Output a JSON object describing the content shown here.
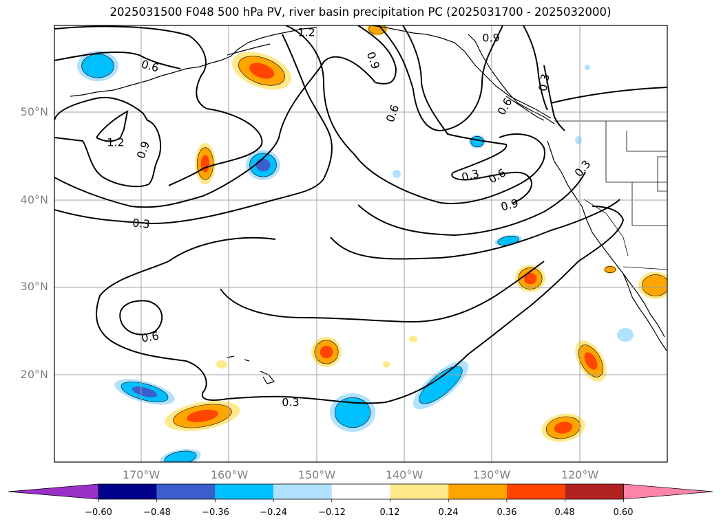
{
  "title": "2025031500 F048 500 hPa PV, river basin precipitation PC (2025031700 - 2025032000)",
  "lat_labels": [
    "50°N",
    "40°N",
    "30°N",
    "20°N"
  ],
  "lon_labels": [
    "170°W",
    "160°W",
    "150°W",
    "140°W",
    "130°W",
    "120°W"
  ],
  "contour_labels": [
    "0.3",
    "0.6",
    "0.9",
    "1.2"
  ],
  "colorbar": {
    "tick_labels": [
      "−0.60",
      "−0.48",
      "−0.36",
      "−0.24",
      "−0.12",
      "0.12",
      "0.24",
      "0.36",
      "0.48",
      "0.60"
    ],
    "colors": [
      "#9b30c8",
      "#00008b",
      "#3a5fcd",
      "#00bfff",
      "#b0e2ff",
      "#ffffff",
      "#ffe98a",
      "#ffa500",
      "#ff4500",
      "#b22222",
      "#ff85a8"
    ]
  },
  "fill_colors": {
    "neg_light": "#b0e2ff",
    "neg_mid": "#00bfff",
    "neg_strong": "#3a5fcd",
    "pos_light": "#ffe98a",
    "pos_mid": "#ffa500",
    "pos_strong": "#ff4500"
  }
}
